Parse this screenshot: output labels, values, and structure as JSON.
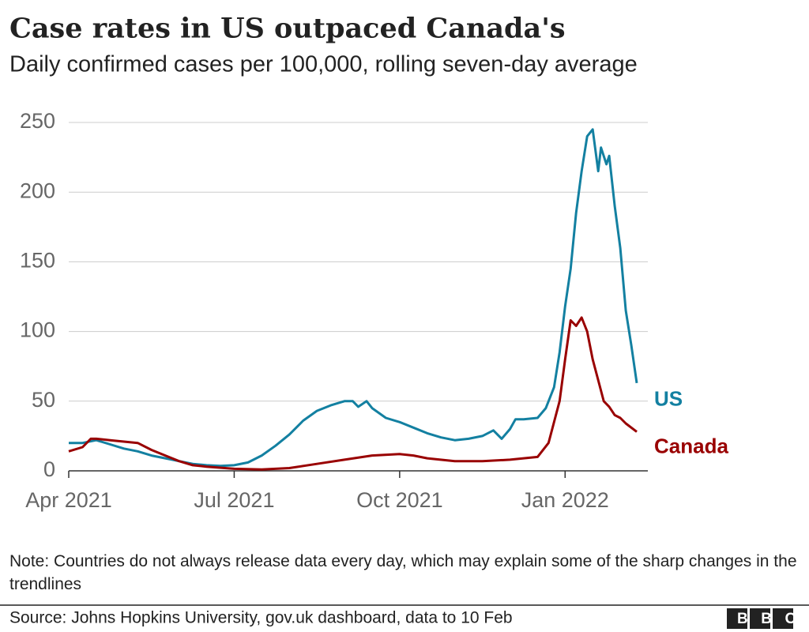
{
  "chart_data": {
    "type": "line",
    "title": "Case rates in US outpaced Canada's",
    "subtitle": "Daily confirmed cases per 100,000, rolling seven-day average",
    "note": "Note: Countries do not always release data every day, which may explain some of the sharp changes in the trendlines",
    "source": "Source: Johns Hopkins University, gov.uk dashboard, data to 10 Feb",
    "logo": "BBC",
    "xlim": [
      0,
      10.5
    ],
    "xticks": [
      {
        "value": 0,
        "label": "Apr 2021"
      },
      {
        "value": 3,
        "label": "Jul 2021"
      },
      {
        "value": 6,
        "label": "Oct 2021"
      },
      {
        "value": 9,
        "label": "Jan 2022"
      }
    ],
    "ylim": [
      0,
      250
    ],
    "yticks": [
      0,
      50,
      100,
      150,
      200,
      250
    ],
    "grid": true,
    "series": [
      {
        "name": "US",
        "color": "#1380a1",
        "x": [
          0,
          0.25,
          0.5,
          0.75,
          1,
          1.25,
          1.5,
          1.75,
          2,
          2.25,
          2.5,
          2.75,
          3,
          3.25,
          3.5,
          3.75,
          4,
          4.25,
          4.5,
          4.75,
          5,
          5.15,
          5.25,
          5.4,
          5.5,
          5.75,
          6,
          6.25,
          6.5,
          6.75,
          7,
          7.25,
          7.5,
          7.7,
          7.85,
          8,
          8.1,
          8.25,
          8.5,
          8.65,
          8.8,
          8.9,
          9,
          9.1,
          9.2,
          9.3,
          9.4,
          9.5,
          9.6,
          9.65,
          9.75,
          9.8,
          9.9,
          10,
          10.1,
          10.2,
          10.3
        ],
        "values": [
          20,
          20,
          22,
          19,
          16,
          14,
          11,
          9,
          7,
          5,
          4,
          3.5,
          4,
          6,
          11,
          18,
          26,
          36,
          43,
          47,
          50,
          50,
          46,
          50,
          45,
          38,
          35,
          31,
          27,
          24,
          22,
          23,
          25,
          29,
          23,
          30,
          37,
          37,
          38,
          45,
          60,
          85,
          118,
          145,
          185,
          215,
          240,
          245,
          215,
          232,
          220,
          226,
          190,
          160,
          115,
          90,
          63
        ]
      },
      {
        "name": "Canada",
        "color": "#990000",
        "x": [
          0,
          0.25,
          0.4,
          0.5,
          0.75,
          1,
          1.25,
          1.5,
          1.75,
          2,
          2.25,
          2.5,
          3,
          3.5,
          4,
          4.5,
          5,
          5.5,
          6,
          6.25,
          6.5,
          7,
          7.5,
          8,
          8.5,
          8.7,
          8.9,
          9,
          9.1,
          9.2,
          9.3,
          9.4,
          9.5,
          9.6,
          9.7,
          9.8,
          9.9,
          10,
          10.1,
          10.3
        ],
        "values": [
          14,
          17,
          23,
          23,
          22,
          21,
          20,
          15,
          11,
          7,
          4,
          3,
          1.5,
          1,
          2,
          5,
          8,
          11,
          12,
          11,
          9,
          7,
          7,
          8,
          10,
          20,
          50,
          80,
          108,
          104,
          110,
          100,
          80,
          65,
          50,
          46,
          40,
          38,
          34,
          28
        ]
      }
    ]
  }
}
